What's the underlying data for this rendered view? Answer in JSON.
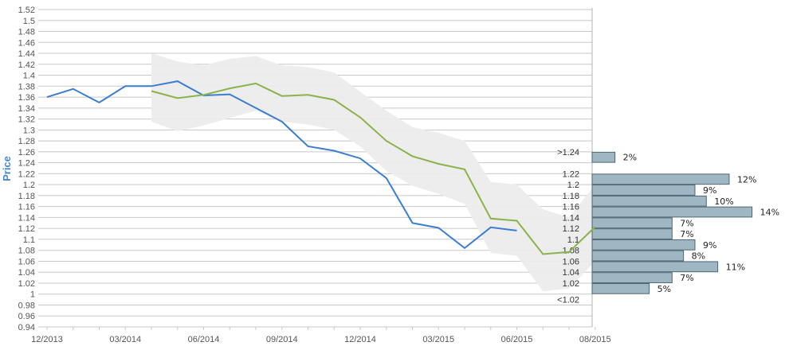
{
  "chart_data": {
    "type": "line",
    "ylabel": "Price",
    "ylim": [
      0.94,
      1.52
    ],
    "y_ticks": [
      "0.94",
      "0.96",
      "0.98",
      "1",
      "1.02",
      "1.04",
      "1.06",
      "1.08",
      "1.1",
      "1.12",
      "1.14",
      "1.16",
      "1.18",
      "1.2",
      "1.22",
      "1.24",
      "1.26",
      "1.28",
      "1.3",
      "1.32",
      "1.34",
      "1.36",
      "1.38",
      "1.4",
      "1.42",
      "1.44",
      "1.46",
      "1.48",
      "1.5",
      "1.52"
    ],
    "x_ticks": [
      "12/2013",
      "03/2014",
      "06/2014",
      "09/2014",
      "12/2014",
      "03/2015",
      "06/2015",
      "08/2015"
    ],
    "x_range": [
      "2013-12",
      "2015-09"
    ],
    "grid": true,
    "colors": {
      "actual": "#3a7dd1",
      "forecast": "#8ab34a",
      "band": "#ececec",
      "bar_fill": "#9fb6c3",
      "bar_stroke": "#4e6574",
      "grid": "#c8c8c8",
      "ylabel": "#4a86c8"
    },
    "series": [
      {
        "key": "actual",
        "points": [
          [
            "2013-12",
            1.36
          ],
          [
            "2014-01",
            1.375
          ],
          [
            "2014-02",
            1.35
          ],
          [
            "2014-03",
            1.38
          ],
          [
            "2014-04",
            1.38
          ],
          [
            "2014-05",
            1.389
          ],
          [
            "2014-06",
            1.363
          ],
          [
            "2014-07",
            1.365
          ],
          [
            "2014-08",
            1.34
          ],
          [
            "2014-09",
            1.315
          ],
          [
            "2014-10",
            1.27
          ],
          [
            "2014-11",
            1.262
          ],
          [
            "2014-12",
            1.248
          ],
          [
            "2015-01",
            1.212
          ],
          [
            "2015-02",
            1.13
          ],
          [
            "2015-03",
            1.121
          ],
          [
            "2015-04",
            1.084
          ],
          [
            "2015-05",
            1.122
          ],
          [
            "2015-06",
            1.116
          ]
        ]
      },
      {
        "key": "forecast",
        "points": [
          [
            "2014-04",
            1.371
          ],
          [
            "2014-05",
            1.358
          ],
          [
            "2014-06",
            1.364
          ],
          [
            "2014-07",
            1.376
          ],
          [
            "2014-08",
            1.385
          ],
          [
            "2014-09",
            1.362
          ],
          [
            "2014-10",
            1.364
          ],
          [
            "2014-11",
            1.355
          ],
          [
            "2014-12",
            1.323
          ],
          [
            "2015-01",
            1.28
          ],
          [
            "2015-02",
            1.252
          ],
          [
            "2015-03",
            1.238
          ],
          [
            "2015-04",
            1.228
          ],
          [
            "2015-05",
            1.138
          ],
          [
            "2015-06",
            1.134
          ],
          [
            "2015-07",
            1.073
          ],
          [
            "2015-08",
            1.077
          ],
          [
            "2015-09",
            1.123
          ]
        ]
      }
    ],
    "band": {
      "upper": [
        [
          "2014-04",
          1.44
        ],
        [
          "2014-05",
          1.425
        ],
        [
          "2014-06",
          1.418
        ],
        [
          "2014-07",
          1.43
        ],
        [
          "2014-08",
          1.435
        ],
        [
          "2014-09",
          1.418
        ],
        [
          "2014-10",
          1.415
        ],
        [
          "2014-11",
          1.405
        ],
        [
          "2014-12",
          1.37
        ],
        [
          "2015-01",
          1.335
        ],
        [
          "2015-02",
          1.305
        ],
        [
          "2015-03",
          1.295
        ],
        [
          "2015-04",
          1.28
        ],
        [
          "2015-05",
          1.205
        ],
        [
          "2015-06",
          1.2
        ],
        [
          "2015-07",
          1.155
        ],
        [
          "2015-08",
          1.14
        ],
        [
          "2015-09",
          1.2
        ]
      ],
      "lower": [
        [
          "2014-04",
          1.315
        ],
        [
          "2014-05",
          1.298
        ],
        [
          "2014-06",
          1.308
        ],
        [
          "2014-07",
          1.322
        ],
        [
          "2014-08",
          1.335
        ],
        [
          "2014-09",
          1.315
        ],
        [
          "2014-10",
          1.31
        ],
        [
          "2014-11",
          1.3
        ],
        [
          "2014-12",
          1.27
        ],
        [
          "2015-01",
          1.225
        ],
        [
          "2015-02",
          1.198
        ],
        [
          "2015-03",
          1.183
        ],
        [
          "2015-04",
          1.165
        ],
        [
          "2015-05",
          1.075
        ],
        [
          "2015-06",
          1.07
        ],
        [
          "2015-07",
          1.005
        ],
        [
          "2015-08",
          1.01
        ],
        [
          "2015-09",
          1.06
        ]
      ]
    },
    "distribution": [
      {
        "label": ">1.24",
        "low": 1.24,
        "high": 1.26,
        "percent": "2%",
        "value": 2
      },
      {
        "label": "1.22",
        "low": 1.2,
        "high": 1.22,
        "percent": "12%",
        "value": 12
      },
      {
        "label": "1.2",
        "low": 1.18,
        "high": 1.2,
        "percent": "9%",
        "value": 9
      },
      {
        "label": "1.18",
        "low": 1.16,
        "high": 1.18,
        "percent": "10%",
        "value": 10
      },
      {
        "label": "1.16",
        "low": 1.14,
        "high": 1.16,
        "percent": "14%",
        "value": 14
      },
      {
        "label": "1.14",
        "low": 1.12,
        "high": 1.14,
        "percent": "7%",
        "value": 7
      },
      {
        "label": "1.12",
        "low": 1.1,
        "high": 1.12,
        "percent": "7%",
        "value": 7
      },
      {
        "label": "1.1",
        "low": 1.08,
        "high": 1.1,
        "percent": "9%",
        "value": 9
      },
      {
        "label": "1.08",
        "low": 1.06,
        "high": 1.08,
        "percent": "8%",
        "value": 8
      },
      {
        "label": "1.06",
        "low": 1.04,
        "high": 1.06,
        "percent": "11%",
        "value": 11
      },
      {
        "label": "1.04",
        "low": 1.02,
        "high": 1.04,
        "percent": "7%",
        "value": 7
      },
      {
        "label": "1.02",
        "low": 1.0,
        "high": 1.02,
        "percent": "5%",
        "value": 5
      },
      {
        "label": "<1.02",
        "low": null,
        "high": null,
        "percent": "",
        "value": 0
      }
    ]
  }
}
